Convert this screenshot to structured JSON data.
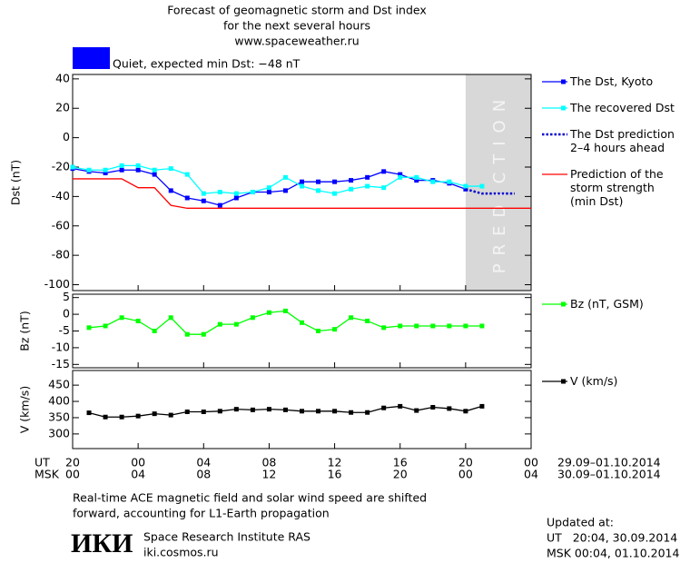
{
  "header": {
    "title": "Forecast of geomagnetic storm and Dst index",
    "subtitle": "for the next several hours",
    "url": "www.spaceweather.ru"
  },
  "status": {
    "color": "#0000ff",
    "text": "Quiet, expected min Dst: −48 nT"
  },
  "time_axis": {
    "ut_label": "UT",
    "msk_label": "MSK",
    "ut_ticks": [
      {
        "value": 0,
        "label": "20"
      },
      {
        "value": 4,
        "label": "00"
      },
      {
        "value": 8,
        "label": "04"
      },
      {
        "value": 12,
        "label": "08"
      },
      {
        "value": 16,
        "label": "12"
      },
      {
        "value": 20,
        "label": "16"
      },
      {
        "value": 24,
        "label": "20"
      },
      {
        "value": 28,
        "label": "00"
      }
    ],
    "msk_ticks": [
      {
        "value": 0,
        "label": "00"
      },
      {
        "value": 4,
        "label": "04"
      },
      {
        "value": 8,
        "label": "08"
      },
      {
        "value": 12,
        "label": "12"
      },
      {
        "value": 16,
        "label": "16"
      },
      {
        "value": 20,
        "label": "20"
      },
      {
        "value": 24,
        "label": "00"
      },
      {
        "value": 28,
        "label": "04"
      }
    ],
    "ut_dates": "29.09–01.10.2014",
    "msk_dates": "30.09–01.10.2014"
  },
  "chart_data": [
    {
      "type": "line",
      "y_label": "Dst (nT)",
      "xlim": [
        0,
        28
      ],
      "ylim": [
        -104,
        43
      ],
      "yticks": [
        40,
        20,
        0,
        -20,
        -40,
        -60,
        -80,
        -100
      ],
      "prediction": {
        "label": "PREDICTION",
        "xrange": [
          24,
          28
        ],
        "color": "#d8d8d8"
      },
      "series": [
        {
          "name": "The Dst, Kyoto",
          "color": "#0000ff",
          "marker": "square",
          "x": [
            0,
            1,
            2,
            3,
            4,
            5,
            6,
            7,
            8,
            9,
            10,
            11,
            12,
            13,
            14,
            15,
            16,
            17,
            18,
            19,
            20,
            21,
            22,
            23,
            24
          ],
          "values": [
            -21,
            -23,
            -24,
            -22,
            -22,
            -25,
            -36,
            -41,
            -43,
            -46,
            -41,
            -37,
            -37,
            -36,
            -30,
            -30,
            -30,
            -29,
            -27,
            -23,
            -25,
            -29,
            -29,
            -31,
            -35
          ]
        },
        {
          "name": "The recovered Dst",
          "color": "#00ffff",
          "marker": "square",
          "x": [
            0,
            1,
            2,
            3,
            4,
            5,
            6,
            7,
            8,
            9,
            10,
            11,
            12,
            13,
            14,
            15,
            16,
            17,
            18,
            19,
            20,
            21,
            22,
            23,
            24,
            25
          ],
          "values": [
            -20,
            -22,
            -22,
            -19,
            -19,
            -22,
            -21,
            -25,
            -38,
            -37,
            -38,
            -37,
            -34,
            -27,
            -33,
            -36,
            -38,
            -35,
            -33,
            -34,
            -27,
            -27,
            -30,
            -30,
            -33,
            -33
          ]
        },
        {
          "name": "The Dst prediction\n2–4 hours ahead",
          "color": "#0000cc",
          "dash": true,
          "x": [
            24,
            25,
            26,
            27
          ],
          "values": [
            -35,
            -38,
            -38,
            -38
          ]
        },
        {
          "name": "Prediction of the\nstorm strength\n(min Dst)",
          "color": "#ff0000",
          "x": [
            0,
            3,
            4,
            5,
            6,
            7,
            28
          ],
          "values": [
            -28,
            -28,
            -34,
            -34,
            -46,
            -48,
            -48
          ]
        }
      ]
    },
    {
      "type": "line",
      "y_label": "Bz (nT)",
      "xlim": [
        0,
        28
      ],
      "ylim": [
        -16,
        6
      ],
      "yticks": [
        5,
        0,
        -5,
        -10,
        -15
      ],
      "series": [
        {
          "name": "Bz (nT, GSM)",
          "color": "#00ff00",
          "marker": "square",
          "x": [
            1,
            2,
            3,
            4,
            5,
            6,
            7,
            8,
            9,
            10,
            11,
            12,
            13,
            14,
            15,
            16,
            17,
            18,
            19,
            20,
            21,
            22,
            23,
            24,
            25
          ],
          "values": [
            -4,
            -3.5,
            -1,
            -2,
            -5,
            -1,
            -6,
            -6,
            -3,
            -3,
            -1,
            0.5,
            1,
            -2.5,
            -5,
            -4.5,
            -1,
            -2,
            -4,
            -3.5,
            -3.5,
            -3.5,
            -3.5,
            -3.5,
            -3.5
          ]
        }
      ]
    },
    {
      "type": "line",
      "y_label": "V (km/s)",
      "xlim": [
        0,
        28
      ],
      "ylim": [
        255,
        495
      ],
      "yticks": [
        450,
        400,
        350,
        300
      ],
      "series": [
        {
          "name": "V (km/s)",
          "color": "#000000",
          "marker": "square",
          "x": [
            1,
            2,
            3,
            4,
            5,
            6,
            7,
            8,
            9,
            10,
            11,
            12,
            13,
            14,
            15,
            16,
            17,
            18,
            19,
            20,
            21,
            22,
            23,
            24,
            25
          ],
          "values": [
            365,
            352,
            352,
            355,
            362,
            358,
            368,
            368,
            370,
            376,
            374,
            376,
            374,
            370,
            370,
            370,
            366,
            366,
            380,
            385,
            372,
            382,
            378,
            370,
            385
          ]
        }
      ]
    }
  ],
  "footer": {
    "note": [
      "Real-time ACE magnetic field and solar wind speed are shifted",
      "forward, accounting for L1-Earth propagation"
    ],
    "logo": "ИКИ",
    "institute": "Space Research Institute RAS",
    "site": "iki.cosmos.ru",
    "updated": [
      "Updated at:",
      "UT   20:04, 30.09.2014",
      "MSK 00:04, 01.10.2014"
    ]
  }
}
